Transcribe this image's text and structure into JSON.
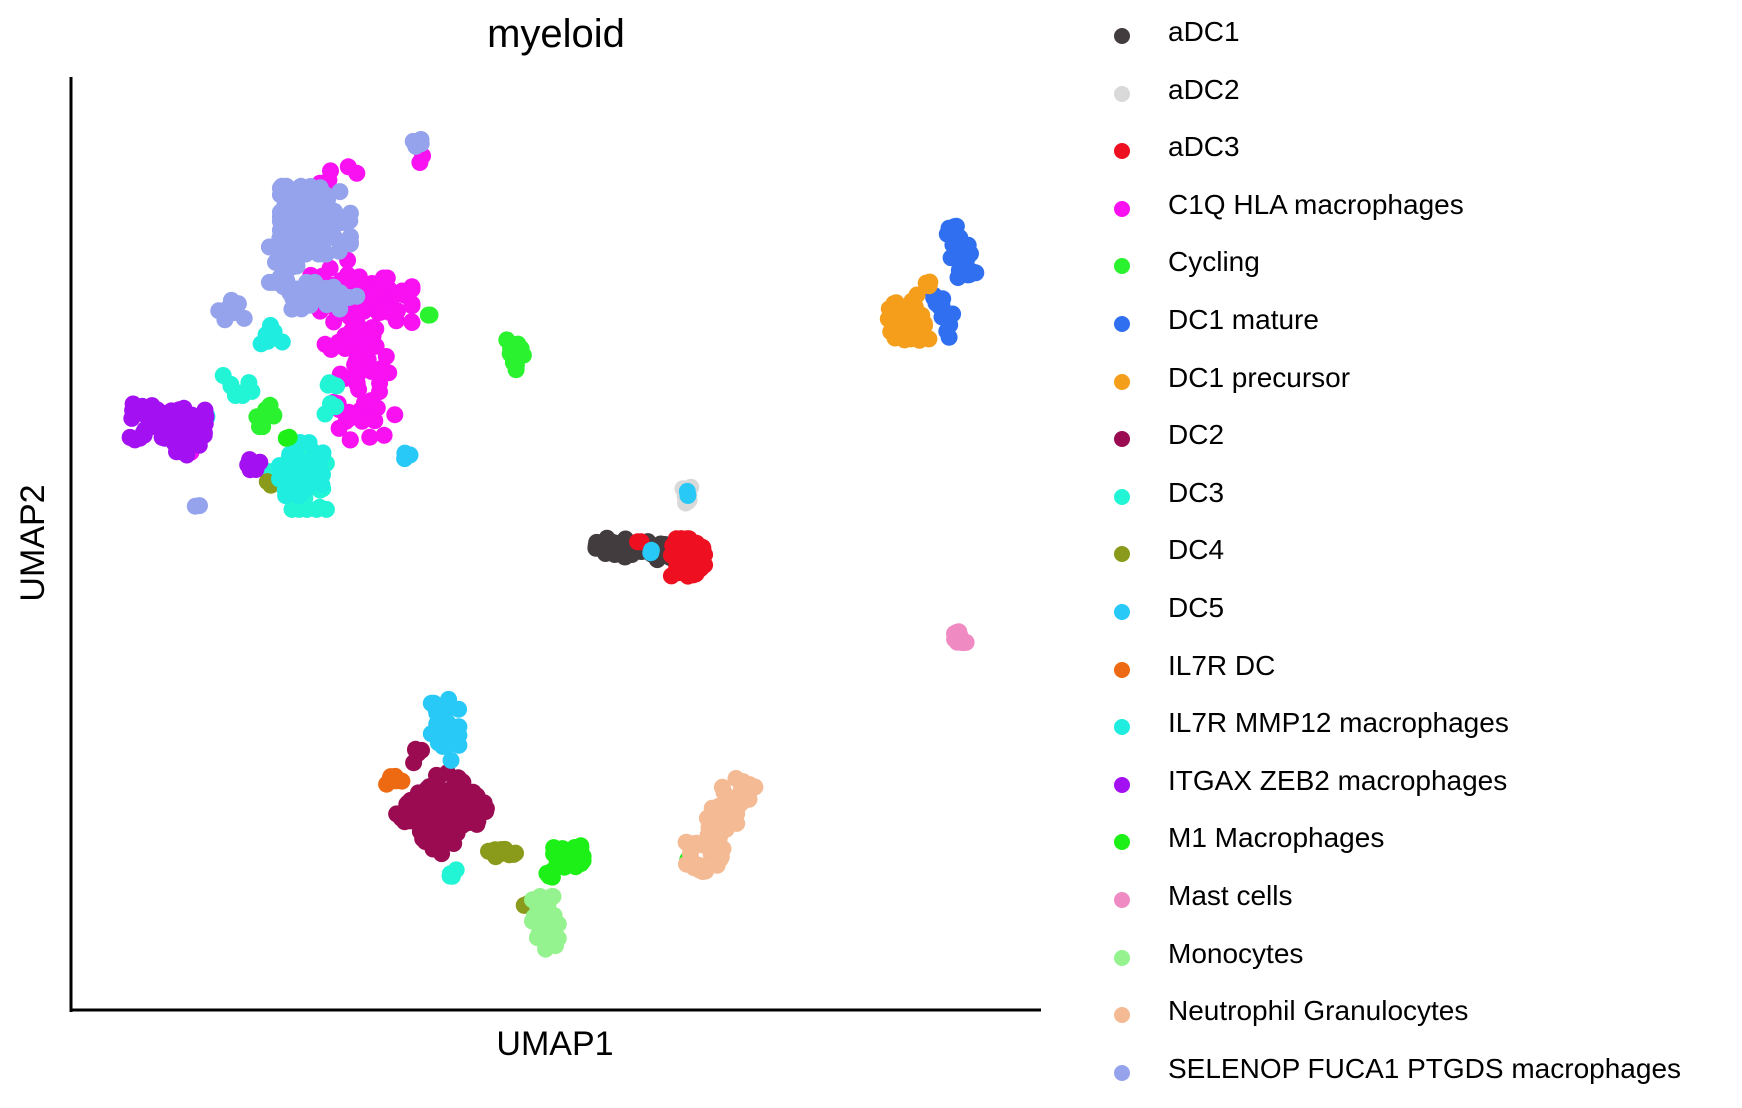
{
  "chart_data": {
    "type": "scatter",
    "title": "myeloid",
    "xlabel": "UMAP1",
    "ylabel": "UMAP2",
    "xlim": [
      0,
      100
    ],
    "ylim": [
      0,
      100
    ],
    "axis_ticks": false,
    "grid": false,
    "legend_position": "right",
    "series": [
      {
        "name": "aDC1",
        "color": "#433C3E",
        "clusters": [
          [
            59.0,
            49.6,
            4.0,
            1.0,
            40,
            -5
          ],
          [
            62.5,
            49.5,
            1.3,
            0.9,
            10,
            0
          ]
        ]
      },
      {
        "name": "aDC2",
        "color": "#D9D9D9",
        "clusters": [
          [
            64.9,
            55.5,
            0.45,
            1.1,
            8,
            0
          ]
        ]
      },
      {
        "name": "aDC3",
        "color": "#EE1021",
        "clusters": [
          [
            65.0,
            48.5,
            1.8,
            2.2,
            55,
            0
          ],
          [
            59.5,
            50.4,
            0.4,
            0.3,
            2,
            0
          ]
        ]
      },
      {
        "name": "C1Q HLA macrophages",
        "color": "#F911F2",
        "clusters": [
          [
            29.0,
            71.0,
            3.2,
            9.0,
            80,
            8
          ],
          [
            32.0,
            77.5,
            3.0,
            2.5,
            40,
            0
          ],
          [
            26.0,
            80.0,
            2.0,
            2.0,
            18,
            0
          ],
          [
            36.0,
            94.0,
            0.6,
            1.2,
            4,
            0
          ],
          [
            27.0,
            91.0,
            2.0,
            1.5,
            6,
            0
          ],
          [
            10.5,
            60.5,
            0.8,
            0.8,
            3,
            0
          ],
          [
            23.0,
            56.5,
            0.5,
            0.5,
            2,
            0
          ]
        ]
      },
      {
        "name": "Cycling",
        "color": "#2BF22F",
        "clusters": [
          [
            46.3,
            71.6,
            1.0,
            1.9,
            16,
            0
          ],
          [
            19.0,
            64.5,
            1.0,
            1.2,
            8,
            0
          ],
          [
            37.0,
            75.5,
            0.4,
            0.4,
            2,
            0
          ]
        ]
      },
      {
        "name": "DC1 mature",
        "color": "#2F6FF0",
        "clusters": [
          [
            94.5,
            83.0,
            1.1,
            2.8,
            30,
            15
          ],
          [
            93.0,
            76.0,
            1.0,
            2.5,
            12,
            30
          ]
        ]
      },
      {
        "name": "DC1 precursor",
        "color": "#F59E1B",
        "clusters": [
          [
            89.0,
            75.0,
            2.2,
            2.6,
            55,
            25
          ],
          [
            91.0,
            79.0,
            0.4,
            0.7,
            3,
            0
          ]
        ]
      },
      {
        "name": "DC2",
        "color": "#9A0B51",
        "clusters": [
          [
            38.5,
            20.0,
            3.5,
            3.8,
            110,
            -45
          ],
          [
            35.6,
            26.5,
            0.5,
            1.2,
            6,
            0
          ]
        ]
      },
      {
        "name": "DC3",
        "color": "#22F5D6",
        "clusters": [
          [
            23.5,
            57.5,
            2.2,
            3.5,
            45,
            0
          ],
          [
            16.0,
            68.0,
            1.6,
            1.2,
            8,
            0
          ],
          [
            26.0,
            67.0,
            0.8,
            3.2,
            8,
            0
          ],
          [
            39.2,
            13.0,
            0.6,
            0.5,
            4,
            0
          ],
          [
            19.5,
            58.0,
            0.3,
            0.3,
            2,
            0
          ]
        ]
      },
      {
        "name": "DC4",
        "color": "#8A9A1A",
        "clusters": [
          [
            44.5,
            15.3,
            2.0,
            0.5,
            14,
            0
          ],
          [
            47.8,
            9.5,
            0.6,
            0.4,
            3,
            0
          ],
          [
            19.4,
            56.8,
            0.4,
            0.4,
            2,
            0
          ]
        ]
      },
      {
        "name": "DC5",
        "color": "#29C9F7",
        "clusters": [
          [
            38.6,
            29.6,
            1.5,
            3.8,
            38,
            0
          ],
          [
            34.8,
            60.0,
            0.6,
            0.5,
            3,
            0
          ],
          [
            65.0,
            55.8,
            0.3,
            0.3,
            2,
            0
          ],
          [
            61.0,
            49.4,
            0.3,
            0.3,
            2,
            0
          ]
        ]
      },
      {
        "name": "IL7R DC",
        "color": "#ED6A12",
        "clusters": [
          [
            33.0,
            23.7,
            0.9,
            0.6,
            8,
            0
          ]
        ]
      },
      {
        "name": "IL7R MMP12 macrophages",
        "color": "#1EEDE0",
        "clusters": [
          [
            23.0,
            58.5,
            2.4,
            3.0,
            50,
            0
          ],
          [
            20.0,
            74.0,
            1.4,
            1.4,
            6,
            0
          ],
          [
            11.5,
            64.3,
            1.2,
            0.5,
            8,
            0
          ]
        ]
      },
      {
        "name": "ITGAX ZEB2 macrophages",
        "color": "#A310F2",
        "clusters": [
          [
            8.5,
            63.5,
            4.0,
            2.0,
            85,
            -5
          ],
          [
            17.5,
            59.0,
            1.2,
            0.6,
            8,
            0
          ],
          [
            10.0,
            60.5,
            0.6,
            0.5,
            4,
            0
          ]
        ]
      },
      {
        "name": "M1 Macrophages",
        "color": "#1CF017",
        "clusters": [
          [
            52.0,
            15.0,
            1.6,
            1.2,
            35,
            0
          ],
          [
            50.0,
            13.0,
            0.8,
            0.6,
            6,
            0
          ],
          [
            65.0,
            14.5,
            0.3,
            0.3,
            2,
            0
          ],
          [
            21.5,
            61.8,
            0.3,
            0.3,
            2,
            0
          ]
        ]
      },
      {
        "name": "Mast cells",
        "color": "#EF8AC3",
        "clusters": [
          [
            94.5,
            39.5,
            1.0,
            0.5,
            14,
            -45
          ]
        ]
      },
      {
        "name": "Monocytes",
        "color": "#95F38F",
        "clusters": [
          [
            49.5,
            7.5,
            1.4,
            3.0,
            45,
            0
          ]
        ]
      },
      {
        "name": "Neutrophil Granulocytes",
        "color": "#F3BA94",
        "clusters": [
          [
            68.5,
            18.5,
            1.6,
            5.5,
            65,
            -25
          ],
          [
            64.8,
            16.5,
            0.3,
            0.3,
            2,
            0
          ]
        ]
      },
      {
        "name": "SELENOP FUCA1 PTGDS macrophages",
        "color": "#94A3EC",
        "clusters": [
          [
            24.5,
            86.5,
            3.8,
            3.8,
            110,
            0
          ],
          [
            21.0,
            82.0,
            1.5,
            2.5,
            22,
            0
          ],
          [
            25.0,
            78.0,
            4.0,
            1.5,
            30,
            0
          ],
          [
            16.0,
            76.5,
            2.0,
            1.2,
            14,
            0
          ],
          [
            35.5,
            95.0,
            0.5,
            0.7,
            5,
            0
          ],
          [
            11.5,
            54.5,
            0.4,
            0.4,
            2,
            0
          ]
        ]
      }
    ]
  }
}
